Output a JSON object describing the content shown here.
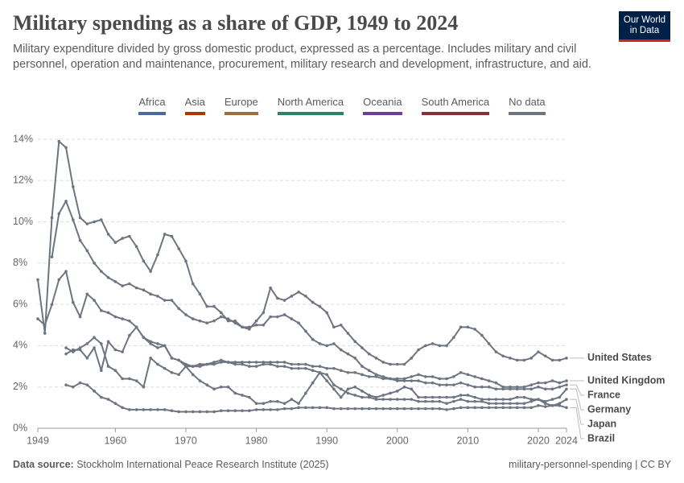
{
  "header": {
    "title": "Military spending as a share of GDP, 1949 to 2024",
    "subtitle": "Military expenditure divided by gross domestic product, expressed as a percentage. Includes military and civil personnel, operation and maintenance, procurement, military research and development, infrastructure, and aid.",
    "logo": [
      "Our World",
      "in Data"
    ]
  },
  "chart_data": {
    "type": "line",
    "legend": [
      {
        "name": "Africa",
        "color": "#4c6a9c"
      },
      {
        "name": "Asia",
        "color": "#b13507"
      },
      {
        "name": "Europe",
        "color": "#9a7040"
      },
      {
        "name": "North America",
        "color": "#2c8465"
      },
      {
        "name": "Oceania",
        "color": "#6d3e91"
      },
      {
        "name": "South America",
        "color": "#883039"
      },
      {
        "name": "No data",
        "color": "#6e7581"
      }
    ],
    "x": [
      1949,
      1950,
      1951,
      1952,
      1953,
      1954,
      1955,
      1956,
      1957,
      1958,
      1959,
      1960,
      1961,
      1962,
      1963,
      1964,
      1965,
      1966,
      1967,
      1968,
      1969,
      1970,
      1971,
      1972,
      1973,
      1974,
      1975,
      1976,
      1977,
      1978,
      1979,
      1980,
      1981,
      1982,
      1983,
      1984,
      1985,
      1986,
      1987,
      1988,
      1989,
      1990,
      1991,
      1992,
      1993,
      1994,
      1995,
      1996,
      1997,
      1998,
      1999,
      2000,
      2001,
      2002,
      2003,
      2004,
      2005,
      2006,
      2007,
      2008,
      2009,
      2010,
      2011,
      2012,
      2013,
      2014,
      2015,
      2016,
      2017,
      2018,
      2019,
      2020,
      2021,
      2022,
      2023,
      2024
    ],
    "series": [
      {
        "name": "United States",
        "color": "#6e7581",
        "values": [
          7.2,
          4.6,
          10.2,
          13.9,
          13.6,
          11.7,
          10.2,
          9.9,
          10.0,
          10.1,
          9.4,
          9.0,
          9.2,
          9.3,
          8.8,
          8.1,
          7.6,
          8.4,
          9.4,
          9.3,
          8.7,
          8.1,
          7.0,
          6.5,
          5.9,
          5.9,
          5.6,
          5.2,
          5.2,
          4.9,
          4.8,
          5.2,
          5.6,
          6.8,
          6.3,
          6.2,
          6.4,
          6.6,
          6.4,
          6.1,
          5.9,
          5.6,
          4.9,
          5.0,
          4.6,
          4.2,
          3.9,
          3.6,
          3.4,
          3.2,
          3.1,
          3.1,
          3.1,
          3.4,
          3.8,
          4.0,
          4.1,
          4.0,
          4.0,
          4.4,
          4.9,
          4.9,
          4.8,
          4.5,
          4.1,
          3.7,
          3.5,
          3.4,
          3.3,
          3.3,
          3.4,
          3.7,
          3.5,
          3.3,
          3.3,
          3.4
        ]
      },
      {
        "name": "United Kingdom",
        "color": "#6e7581",
        "values": [
          null,
          null,
          8.3,
          10.4,
          11.0,
          10.1,
          9.1,
          8.6,
          8.0,
          7.6,
          7.3,
          7.1,
          6.9,
          7.0,
          6.8,
          6.7,
          6.5,
          6.4,
          6.2,
          6.2,
          5.8,
          5.5,
          5.3,
          5.2,
          5.1,
          5.2,
          5.4,
          5.3,
          5.1,
          4.9,
          4.9,
          5.0,
          5.0,
          5.4,
          5.4,
          5.5,
          5.3,
          5.1,
          4.7,
          4.3,
          4.1,
          4.0,
          4.1,
          3.8,
          3.6,
          3.4,
          3.0,
          2.8,
          2.6,
          2.5,
          2.4,
          2.4,
          2.4,
          2.5,
          2.6,
          2.5,
          2.5,
          2.4,
          2.4,
          2.5,
          2.7,
          2.6,
          2.5,
          2.4,
          2.3,
          2.2,
          2.0,
          2.0,
          2.0,
          2.0,
          2.1,
          2.2,
          2.2,
          2.3,
          2.2,
          2.3
        ]
      },
      {
        "name": "France",
        "color": "#6e7581",
        "values": [
          5.3,
          5.0,
          6.0,
          7.2,
          7.6,
          6.1,
          5.4,
          6.5,
          6.2,
          5.7,
          5.6,
          5.4,
          5.3,
          5.2,
          4.9,
          4.4,
          4.1,
          3.9,
          4.0,
          3.4,
          3.3,
          3.1,
          3.0,
          3.0,
          3.1,
          3.1,
          3.2,
          3.2,
          3.2,
          3.2,
          3.2,
          3.2,
          3.2,
          3.2,
          3.2,
          3.2,
          3.1,
          3.1,
          3.1,
          3.0,
          3.0,
          2.9,
          2.9,
          2.8,
          2.7,
          2.7,
          2.6,
          2.5,
          2.5,
          2.4,
          2.4,
          2.3,
          2.3,
          2.3,
          2.3,
          2.2,
          2.2,
          2.1,
          2.1,
          2.1,
          2.2,
          2.1,
          2.0,
          2.0,
          2.0,
          1.9,
          1.9,
          1.9,
          1.9,
          1.9,
          1.9,
          2.0,
          1.9,
          1.9,
          2.0,
          2.1
        ]
      },
      {
        "name": "Germany",
        "color": "#6e7581",
        "values": [
          null,
          null,
          null,
          null,
          3.6,
          3.8,
          3.8,
          3.4,
          3.9,
          2.8,
          4.2,
          3.8,
          3.7,
          4.5,
          4.9,
          4.4,
          4.2,
          4.1,
          4.0,
          3.4,
          3.3,
          3.0,
          3.0,
          3.1,
          3.1,
          3.2,
          3.3,
          3.2,
          3.1,
          3.1,
          3.0,
          3.0,
          3.1,
          3.1,
          3.0,
          3.0,
          2.9,
          2.9,
          2.9,
          2.8,
          2.7,
          2.6,
          2.1,
          1.9,
          1.7,
          1.6,
          1.5,
          1.5,
          1.4,
          1.4,
          1.4,
          1.4,
          1.4,
          1.4,
          1.3,
          1.3,
          1.3,
          1.3,
          1.2,
          1.3,
          1.4,
          1.3,
          1.3,
          1.3,
          1.2,
          1.2,
          1.2,
          1.2,
          1.2,
          1.2,
          1.3,
          1.4,
          1.3,
          1.4,
          1.5,
          1.9
        ]
      },
      {
        "name": "Japan",
        "color": "#6e7581",
        "values": [
          null,
          null,
          null,
          null,
          2.1,
          2.0,
          2.2,
          2.1,
          1.8,
          1.5,
          1.4,
          1.2,
          1.0,
          0.9,
          0.9,
          0.9,
          0.9,
          0.9,
          0.9,
          0.85,
          0.8,
          0.8,
          0.8,
          0.8,
          0.8,
          0.8,
          0.85,
          0.85,
          0.85,
          0.85,
          0.85,
          0.9,
          0.9,
          0.9,
          0.9,
          0.95,
          0.95,
          1.0,
          1.0,
          1.0,
          1.0,
          1.0,
          0.95,
          0.95,
          0.95,
          0.95,
          0.95,
          0.95,
          0.95,
          0.95,
          0.95,
          0.95,
          0.95,
          0.95,
          0.95,
          0.95,
          0.95,
          0.95,
          0.9,
          0.95,
          1.0,
          1.0,
          1.0,
          1.0,
          1.0,
          1.0,
          1.0,
          1.0,
          1.0,
          1.0,
          1.0,
          1.1,
          1.05,
          1.1,
          1.2,
          1.4
        ]
      },
      {
        "name": "Brazil",
        "color": "#6e7581",
        "values": [
          null,
          null,
          null,
          null,
          3.9,
          3.7,
          3.9,
          4.1,
          4.4,
          4.1,
          3.0,
          2.8,
          2.4,
          2.4,
          2.3,
          2.0,
          3.4,
          3.1,
          2.9,
          2.7,
          2.6,
          3.0,
          2.6,
          2.3,
          2.1,
          1.9,
          2.0,
          2.0,
          1.7,
          1.6,
          1.5,
          1.2,
          1.2,
          1.3,
          1.3,
          1.2,
          1.4,
          1.2,
          1.7,
          2.2,
          2.7,
          2.3,
          1.9,
          1.5,
          1.9,
          2.0,
          1.8,
          1.6,
          1.5,
          1.6,
          1.7,
          1.8,
          2.0,
          1.9,
          1.5,
          1.5,
          1.5,
          1.5,
          1.5,
          1.5,
          1.6,
          1.6,
          1.5,
          1.4,
          1.4,
          1.4,
          1.4,
          1.4,
          1.5,
          1.5,
          1.4,
          1.4,
          1.2,
          1.1,
          1.1,
          1.0
        ]
      }
    ],
    "xlim": [
      1949,
      2024
    ],
    "xticks": [
      1949,
      1960,
      1970,
      1980,
      1990,
      2000,
      2010,
      2020,
      2024
    ],
    "ylim": [
      0,
      14
    ],
    "yticks": [
      {
        "value": 0,
        "label": "0%"
      },
      {
        "value": 2,
        "label": "2%"
      },
      {
        "value": 4,
        "label": "4%"
      },
      {
        "value": 6,
        "label": "6%"
      },
      {
        "value": 8,
        "label": "8%"
      },
      {
        "value": 10,
        "label": "10%"
      },
      {
        "value": 12,
        "label": "12%"
      },
      {
        "value": 14,
        "label": "14%"
      }
    ],
    "grid": true
  },
  "footer": {
    "source_label": "Data source:",
    "source": "Stockholm International Peace Research Institute (2025)",
    "credit": "military-personnel-spending | CC BY"
  }
}
